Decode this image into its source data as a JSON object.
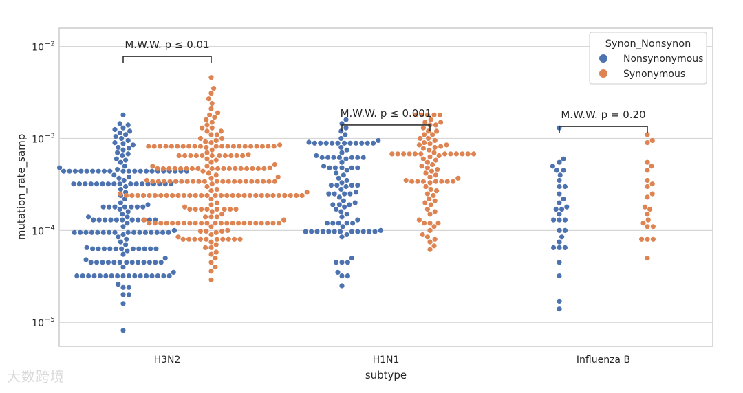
{
  "watermark": "大数跨境",
  "chart_data": {
    "type": "scatter",
    "subtype": "swarm",
    "title": "",
    "xlabel": "subtype",
    "ylabel": "mutation_rate_samp",
    "yscale": "log",
    "ylim": [
      5.5e-06,
      0.0158
    ],
    "categories": [
      "H3N2",
      "H1N1",
      "Influenza B"
    ],
    "yticks": [
      {
        "value": 0.01,
        "label": "10",
        "exp": "−2"
      },
      {
        "value": 0.001,
        "label": "10",
        "exp": "−3"
      },
      {
        "value": 0.0001,
        "label": "10",
        "exp": "−4"
      },
      {
        "value": 1e-05,
        "label": "10",
        "exp": "−5"
      }
    ],
    "grid": true,
    "legend": {
      "title": "Synon_Nonsynon",
      "placement": "top-right",
      "entries": [
        {
          "name": "Nonsynonymous",
          "color": "#4c72b0"
        },
        {
          "name": "Synonymous",
          "color": "#dd8452"
        }
      ]
    },
    "annotations": [
      {
        "category": "H3N2",
        "text": "M.W.W. p ≤ 0.01",
        "y": 0.0078
      },
      {
        "category": "H1N1",
        "text": "M.W.W. p ≤ 0.001",
        "y": 0.0014
      },
      {
        "category": "Influenza B",
        "text": "M.W.W. p = 0.20",
        "y": 0.00135
      }
    ],
    "series": [
      {
        "name": "Nonsynonymous",
        "color": "#4c72b0",
        "values": {
          "H3N2": [
            0.0018,
            0.00145,
            0.0014,
            0.0013,
            0.00125,
            0.0012,
            0.00115,
            0.0011,
            0.00105,
            0.001,
            0.00095,
            0.0009,
            0.00088,
            0.00085,
            0.0008,
            0.00078,
            0.00075,
            0.0007,
            0.00068,
            0.00065,
            0.0006,
            0.00058,
            0.00055,
            0.0005,
            0.00048,
            0.00046,
            0.00044,
            0.00044,
            0.00044,
            0.00044,
            0.00044,
            0.00044,
            0.00044,
            0.00044,
            0.00044,
            0.00044,
            0.00044,
            0.00044,
            0.00044,
            0.00044,
            0.00044,
            0.00044,
            0.00044,
            0.00044,
            0.00044,
            0.00044,
            0.00044,
            0.0004,
            0.00038,
            0.00037,
            0.00035,
            0.00034,
            0.00032,
            0.00032,
            0.00032,
            0.00032,
            0.00032,
            0.00032,
            0.00032,
            0.00032,
            0.00032,
            0.00032,
            0.00032,
            0.00032,
            0.00032,
            0.00032,
            0.00032,
            0.00032,
            0.00032,
            0.0003,
            0.00028,
            0.00026,
            0.00024,
            0.00022,
            0.0002,
            0.00019,
            0.00018,
            0.00018,
            0.00018,
            0.00018,
            0.00018,
            0.00018,
            0.00018,
            0.00017,
            0.00016,
            0.00015,
            0.00014,
            0.00014,
            0.00013,
            0.00013,
            0.00013,
            0.00013,
            0.00013,
            0.00013,
            0.00013,
            0.00013,
            0.00013,
            0.00013,
            0.00013,
            0.00012,
            0.00011,
            0.0001,
            9.5e-05,
            9.5e-05,
            9.5e-05,
            9.5e-05,
            9.5e-05,
            9.5e-05,
            9.5e-05,
            9.5e-05,
            9.5e-05,
            9.5e-05,
            9.5e-05,
            9.5e-05,
            9.5e-05,
            9.5e-05,
            9.5e-05,
            9.5e-05,
            9e-05,
            8.5e-05,
            8e-05,
            7.5e-05,
            7e-05,
            6.5e-05,
            6.3e-05,
            6.3e-05,
            6.3e-05,
            6.3e-05,
            6.3e-05,
            6.3e-05,
            6.3e-05,
            6.3e-05,
            6.3e-05,
            6.3e-05,
            6.3e-05,
            6e-05,
            5.5e-05,
            5e-05,
            4.8e-05,
            4.5e-05,
            4.5e-05,
            4.5e-05,
            4.5e-05,
            4.5e-05,
            4.5e-05,
            4.5e-05,
            4.5e-05,
            4.5e-05,
            4.5e-05,
            4.5e-05,
            4.5e-05,
            4.5e-05,
            4e-05,
            3.5e-05,
            3.2e-05,
            3.2e-05,
            3.2e-05,
            3.2e-05,
            3.2e-05,
            3.2e-05,
            3.2e-05,
            3.2e-05,
            3.2e-05,
            3.2e-05,
            3.2e-05,
            3.2e-05,
            3.2e-05,
            3.2e-05,
            3.2e-05,
            3.2e-05,
            3.2e-05,
            2.6e-05,
            2.4e-05,
            2.4e-05,
            2e-05,
            2e-05,
            1.6e-05,
            8.2e-06
          ],
          "H1N1": [
            0.0016,
            0.00145,
            0.0013,
            0.0012,
            0.0011,
            0.001,
            0.00095,
            0.00091,
            0.00089,
            0.00089,
            0.00089,
            0.00089,
            0.00089,
            0.00089,
            0.00089,
            0.00089,
            0.00089,
            0.00089,
            0.00089,
            0.0008,
            0.00075,
            0.0007,
            0.00065,
            0.00062,
            0.00062,
            0.00062,
            0.00062,
            0.00062,
            0.00062,
            0.00062,
            0.0006,
            0.00055,
            0.0005,
            0.00048,
            0.00048,
            0.00048,
            0.00048,
            0.00048,
            0.00045,
            0.00042,
            0.0004,
            0.00037,
            0.00035,
            0.00033,
            0.00031,
            0.00031,
            0.00031,
            0.00031,
            0.0003,
            0.00028,
            0.00026,
            0.00025,
            0.00025,
            0.00025,
            0.00025,
            0.00023,
            0.00021,
            0.0002,
            0.00019,
            0.00019,
            0.00019,
            0.00018,
            0.00017,
            0.00016,
            0.00015,
            0.00014,
            0.00013,
            0.00012,
            0.00012,
            0.00012,
            0.00012,
            0.00012,
            0.00011,
            0.0001,
            9.7e-05,
            9.7e-05,
            9.7e-05,
            9.7e-05,
            9.7e-05,
            9.7e-05,
            9.7e-05,
            9.7e-05,
            9.7e-05,
            9.7e-05,
            9.7e-05,
            9.7e-05,
            9e-05,
            8.5e-05,
            5e-05,
            4.5e-05,
            4.5e-05,
            4.5e-05,
            3.5e-05,
            3.2e-05,
            3.2e-05,
            2.5e-05
          ],
          "Influenza B": [
            0.0013,
            0.0006,
            0.00055,
            0.0005,
            0.00045,
            0.00045,
            0.0004,
            0.00035,
            0.0003,
            0.0003,
            0.00025,
            0.00022,
            0.0002,
            0.00018,
            0.00017,
            0.00017,
            0.00015,
            0.00013,
            0.00013,
            0.00013,
            0.0001,
            0.0001,
            8.5e-05,
            7.5e-05,
            6.5e-05,
            6.5e-05,
            6.5e-05,
            4.5e-05,
            3.2e-05,
            1.7e-05,
            1.4e-05
          ]
        }
      },
      {
        "name": "Synonymous",
        "color": "#dd8452",
        "values": {
          "H3N2": [
            0.0046,
            0.0035,
            0.0031,
            0.0027,
            0.0024,
            0.0021,
            0.0019,
            0.0018,
            0.0017,
            0.0016,
            0.0015,
            0.0014,
            0.0013,
            0.0013,
            0.0012,
            0.0012,
            0.0011,
            0.0011,
            0.001,
            0.001,
            0.00095,
            0.00092,
            0.0009,
            0.00085,
            0.00082,
            0.00082,
            0.00082,
            0.00082,
            0.00082,
            0.00082,
            0.00082,
            0.00082,
            0.00082,
            0.00082,
            0.00082,
            0.00082,
            0.00082,
            0.00082,
            0.00082,
            0.00082,
            0.00082,
            0.00082,
            0.00082,
            0.00082,
            0.00082,
            0.0008,
            0.00075,
            0.0007,
            0.00067,
            0.00065,
            0.00065,
            0.00065,
            0.00065,
            0.00065,
            0.00065,
            0.00065,
            0.00065,
            0.00065,
            0.00065,
            0.00065,
            0.0006,
            0.00058,
            0.00055,
            0.00052,
            0.0005,
            0.0005,
            0.00048,
            0.00047,
            0.00047,
            0.00047,
            0.00047,
            0.00047,
            0.00047,
            0.00047,
            0.00047,
            0.00047,
            0.00047,
            0.00047,
            0.00047,
            0.00047,
            0.00047,
            0.00047,
            0.00047,
            0.00047,
            0.00047,
            0.00044,
            0.00042,
            0.0004,
            0.00038,
            0.00037,
            0.00035,
            0.00034,
            0.00034,
            0.00034,
            0.00034,
            0.00034,
            0.00034,
            0.00034,
            0.00034,
            0.00034,
            0.00034,
            0.00034,
            0.00034,
            0.00034,
            0.00034,
            0.00034,
            0.00034,
            0.00034,
            0.00034,
            0.00034,
            0.00034,
            0.00034,
            0.00032,
            0.0003,
            0.00028,
            0.00027,
            0.00026,
            0.00025,
            0.00024,
            0.00024,
            0.00024,
            0.00024,
            0.00024,
            0.00024,
            0.00024,
            0.00024,
            0.00024,
            0.00024,
            0.00024,
            0.00024,
            0.00024,
            0.00024,
            0.00024,
            0.00024,
            0.00024,
            0.00024,
            0.00024,
            0.00024,
            0.00024,
            0.00024,
            0.00024,
            0.00024,
            0.00024,
            0.00024,
            0.00024,
            0.00024,
            0.00024,
            0.00024,
            0.00024,
            0.00022,
            0.0002,
            0.00019,
            0.00018,
            0.00017,
            0.00017,
            0.00017,
            0.00017,
            0.00017,
            0.00017,
            0.00017,
            0.00017,
            0.00016,
            0.00015,
            0.00014,
            0.00014,
            0.00014,
            0.00013,
            0.00013,
            0.00012,
            0.00012,
            0.00012,
            0.00012,
            0.00012,
            0.00012,
            0.00012,
            0.00012,
            0.00012,
            0.00012,
            0.00012,
            0.00012,
            0.00012,
            0.00012,
            0.00012,
            0.00012,
            0.00012,
            0.00012,
            0.00012,
            0.00012,
            0.00012,
            0.00012,
            0.00012,
            0.00011,
            0.0001,
            9.8e-05,
            9.8e-05,
            9.8e-05,
            9.5e-05,
            9e-05,
            8.5e-05,
            8e-05,
            8e-05,
            8e-05,
            8e-05,
            8e-05,
            8e-05,
            8e-05,
            8e-05,
            8e-05,
            8e-05,
            7.5e-05,
            7e-05,
            6.5e-05,
            6.5e-05,
            5.8e-05,
            5.5e-05,
            5e-05,
            4.5e-05,
            4e-05,
            3.6e-05,
            2.9e-05
          ],
          "H1N1": [
            0.0018,
            0.0018,
            0.0018,
            0.0018,
            0.0018,
            0.0016,
            0.0015,
            0.0015,
            0.0014,
            0.0014,
            0.0013,
            0.0012,
            0.0012,
            0.0011,
            0.0011,
            0.001,
            0.001,
            0.00095,
            0.0009,
            0.00088,
            0.00085,
            0.00085,
            0.00082,
            0.0008,
            0.00078,
            0.00075,
            0.0007,
            0.00068,
            0.00068,
            0.00068,
            0.00068,
            0.00068,
            0.00068,
            0.00068,
            0.00068,
            0.00068,
            0.00068,
            0.00068,
            0.00068,
            0.00065,
            0.00063,
            0.0006,
            0.00058,
            0.00055,
            0.00052,
            0.0005,
            0.00048,
            0.00046,
            0.00044,
            0.00042,
            0.0004,
            0.00038,
            0.00037,
            0.00035,
            0.00034,
            0.00034,
            0.00034,
            0.00034,
            0.00034,
            0.00034,
            0.00034,
            0.00033,
            0.0003,
            0.00028,
            0.00027,
            0.00025,
            0.00024,
            0.00022,
            0.00021,
            0.0002,
            0.00019,
            0.00017,
            0.00016,
            0.00015,
            0.00013,
            0.00012,
            0.00012,
            0.00012,
            0.00011,
            0.0001,
            9e-05,
            8.5e-05,
            8e-05,
            7.5e-05,
            6.8e-05,
            6.2e-05
          ],
          "Influenza B": [
            0.0011,
            0.00095,
            0.0009,
            0.00055,
            0.0005,
            0.00045,
            0.00035,
            0.00032,
            0.0003,
            0.00025,
            0.00023,
            0.00018,
            0.00017,
            0.00015,
            0.00013,
            0.00012,
            0.00011,
            0.00011,
            8e-05,
            8e-05,
            8e-05,
            5e-05
          ]
        }
      }
    ]
  }
}
